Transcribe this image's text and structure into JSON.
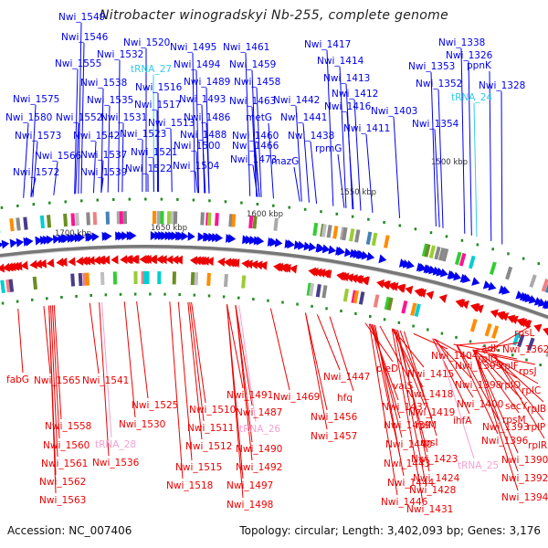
{
  "title": "Nitrobacter winogradskyi Nb-255, complete genome",
  "footer": {
    "accession": "Accession: NC_007406",
    "summary": "Topology: circular; Length: 3,402,093 bp; Genes: 3,176"
  },
  "colors": {
    "forward": "#0000ee",
    "reverse": "#ee0000",
    "trna_forward": "#33ccee",
    "trna_reverse": "#f4a0d0",
    "backbone": "#888888",
    "gc_marker": "#228b22"
  },
  "scale_marks": [
    {
      "label": "1700 kbp"
    },
    {
      "label": "1650 kbp"
    },
    {
      "label": "1600 kbp"
    },
    {
      "label": "1550 kbp"
    },
    {
      "label": "1500 kbp"
    }
  ],
  "forward_labels": [
    {
      "text": "Nwi_1549",
      "kind": "gene"
    },
    {
      "text": "Nwi_1546",
      "kind": "gene"
    },
    {
      "text": "Nwi_1555",
      "kind": "gene"
    },
    {
      "text": "Nwi_1532",
      "kind": "gene"
    },
    {
      "text": "Nwi_1520",
      "kind": "gene"
    },
    {
      "text": "tRNA_27",
      "kind": "trna"
    },
    {
      "text": "Nwi_1538",
      "kind": "gene"
    },
    {
      "text": "Nwi_1516",
      "kind": "gene"
    },
    {
      "text": "Nwi_1575",
      "kind": "gene"
    },
    {
      "text": "Nwi_1535",
      "kind": "gene"
    },
    {
      "text": "Nwi_1517",
      "kind": "gene"
    },
    {
      "text": "Nwi_1580",
      "kind": "gene"
    },
    {
      "text": "Nwi_1552",
      "kind": "gene"
    },
    {
      "text": "Nwi_1531",
      "kind": "gene"
    },
    {
      "text": "Nwi_1513",
      "kind": "gene"
    },
    {
      "text": "Nwi_1573",
      "kind": "gene"
    },
    {
      "text": "Nwi_1542",
      "kind": "gene"
    },
    {
      "text": "Nwi_1523",
      "kind": "gene"
    },
    {
      "text": "Nwi_1566",
      "kind": "gene"
    },
    {
      "text": "Nwi_1537",
      "kind": "gene"
    },
    {
      "text": "Nwi_1521",
      "kind": "gene"
    },
    {
      "text": "Nwi_1572",
      "kind": "gene"
    },
    {
      "text": "Nwi_1539",
      "kind": "gene"
    },
    {
      "text": "Nwi_1522",
      "kind": "gene"
    },
    {
      "text": "Nwi_1495",
      "kind": "gene"
    },
    {
      "text": "Nwi_1494",
      "kind": "gene"
    },
    {
      "text": "Nwi_1489",
      "kind": "gene"
    },
    {
      "text": "Nwi_1493",
      "kind": "gene"
    },
    {
      "text": "Nwi_1486",
      "kind": "gene"
    },
    {
      "text": "Nwi_1488",
      "kind": "gene"
    },
    {
      "text": "Nwi_1500",
      "kind": "gene"
    },
    {
      "text": "Nwi_1504",
      "kind": "gene"
    },
    {
      "text": "Nwi_1461",
      "kind": "gene"
    },
    {
      "text": "Nwi_1459",
      "kind": "gene"
    },
    {
      "text": "Nwi_1458",
      "kind": "gene"
    },
    {
      "text": "Nwi_1463",
      "kind": "gene"
    },
    {
      "text": "metG",
      "kind": "gene"
    },
    {
      "text": "Nwi_1460",
      "kind": "gene"
    },
    {
      "text": "Nwi_1466",
      "kind": "gene"
    },
    {
      "text": "Nwi_1473",
      "kind": "gene"
    },
    {
      "text": "mazG",
      "kind": "gene"
    },
    {
      "text": "Nwi_1442",
      "kind": "gene"
    },
    {
      "text": "Nwi_1441",
      "kind": "gene"
    },
    {
      "text": "Nwi_1438",
      "kind": "gene"
    },
    {
      "text": "rpmG",
      "kind": "gene"
    },
    {
      "text": "Nwi_1417",
      "kind": "gene"
    },
    {
      "text": "Nwi_1414",
      "kind": "gene"
    },
    {
      "text": "Nwi_1413",
      "kind": "gene"
    },
    {
      "text": "Nwi_1412",
      "kind": "gene"
    },
    {
      "text": "Nwi_1416",
      "kind": "gene"
    },
    {
      "text": "Nwi_1411",
      "kind": "gene"
    },
    {
      "text": "Nwi_1403",
      "kind": "gene"
    },
    {
      "text": "Nwi_1338",
      "kind": "gene"
    },
    {
      "text": "Nwi_1326",
      "kind": "gene"
    },
    {
      "text": "ppnK",
      "kind": "gene"
    },
    {
      "text": "Nwi_1353",
      "kind": "gene"
    },
    {
      "text": "Nwi_1352",
      "kind": "gene"
    },
    {
      "text": "Nwi_1328",
      "kind": "gene"
    },
    {
      "text": "tRNA_24",
      "kind": "trna"
    },
    {
      "text": "Nwi_1354",
      "kind": "gene"
    }
  ],
  "reverse_labels": [
    {
      "text": "fabG",
      "kind": "gene"
    },
    {
      "text": "Nwi_1565",
      "kind": "gene"
    },
    {
      "text": "Nwi_1558",
      "kind": "gene"
    },
    {
      "text": "Nwi_1560",
      "kind": "gene"
    },
    {
      "text": "Nwi_1561",
      "kind": "gene"
    },
    {
      "text": "Nwi_1562",
      "kind": "gene"
    },
    {
      "text": "Nwi_1563",
      "kind": "gene"
    },
    {
      "text": "Nwi_1541",
      "kind": "gene"
    },
    {
      "text": "tRNA_28",
      "kind": "trna"
    },
    {
      "text": "Nwi_1536",
      "kind": "gene"
    },
    {
      "text": "Nwi_1525",
      "kind": "gene"
    },
    {
      "text": "Nwi_1530",
      "kind": "gene"
    },
    {
      "text": "Nwi_1510",
      "kind": "gene"
    },
    {
      "text": "Nwi_1511",
      "kind": "gene"
    },
    {
      "text": "Nwi_1512",
      "kind": "gene"
    },
    {
      "text": "Nwi_1515",
      "kind": "gene"
    },
    {
      "text": "Nwi_1518",
      "kind": "gene"
    },
    {
      "text": "Nwi_1491",
      "kind": "gene"
    },
    {
      "text": "Nwi_1487",
      "kind": "gene"
    },
    {
      "text": "tRNA_26",
      "kind": "trna"
    },
    {
      "text": "Nwi_1490",
      "kind": "gene"
    },
    {
      "text": "Nwi_1492",
      "kind": "gene"
    },
    {
      "text": "Nwi_1497",
      "kind": "gene"
    },
    {
      "text": "Nwi_1498",
      "kind": "gene"
    },
    {
      "text": "Nwi_1469",
      "kind": "gene"
    },
    {
      "text": "Nwi_1456",
      "kind": "gene"
    },
    {
      "text": "Nwi_1457",
      "kind": "gene"
    },
    {
      "text": "Nwi_1447",
      "kind": "gene"
    },
    {
      "text": "hfq",
      "kind": "gene"
    },
    {
      "text": "pleD",
      "kind": "gene"
    },
    {
      "text": "valS",
      "kind": "gene"
    },
    {
      "text": "Nwi_1437",
      "kind": "gene"
    },
    {
      "text": "Nwi_1439",
      "kind": "gene"
    },
    {
      "text": "Nwi_1440",
      "kind": "gene"
    },
    {
      "text": "Nwi_1443",
      "kind": "gene"
    },
    {
      "text": "Nwi_1444",
      "kind": "gene"
    },
    {
      "text": "Nwi_1446",
      "kind": "gene"
    },
    {
      "text": "Nwi_1415",
      "kind": "gene"
    },
    {
      "text": "Nwi_1418",
      "kind": "gene"
    },
    {
      "text": "Nwi_1419",
      "kind": "gene"
    },
    {
      "text": "rplM",
      "kind": "gene"
    },
    {
      "text": "rpsI",
      "kind": "gene"
    },
    {
      "text": "Nwi_1423",
      "kind": "gene"
    },
    {
      "text": "Nwi_1424",
      "kind": "gene"
    },
    {
      "text": "Nwi_1428",
      "kind": "gene"
    },
    {
      "text": "Nwi_1431",
      "kind": "gene"
    },
    {
      "text": "Nwi_1404",
      "kind": "gene"
    },
    {
      "text": "ihfA",
      "kind": "gene"
    },
    {
      "text": "tRNA_25",
      "kind": "trna"
    },
    {
      "text": "adk",
      "kind": "gene"
    },
    {
      "text": "rplQ",
      "kind": "gene"
    },
    {
      "text": "Nwi_1395",
      "kind": "gene"
    },
    {
      "text": "rplF",
      "kind": "gene"
    },
    {
      "text": "Nwi_1398",
      "kind": "gene"
    },
    {
      "text": "rplO",
      "kind": "gene"
    },
    {
      "text": "Nwi_1400",
      "kind": "gene"
    },
    {
      "text": "secY",
      "kind": "gene"
    },
    {
      "text": "rpsM",
      "kind": "gene"
    },
    {
      "text": "Nwi_1393",
      "kind": "gene"
    },
    {
      "text": "Nwi_1396",
      "kind": "gene"
    },
    {
      "text": "rpsL",
      "kind": "gene"
    },
    {
      "text": "Nwi_1362",
      "kind": "gene"
    },
    {
      "text": "rpsJ",
      "kind": "gene"
    },
    {
      "text": "rplC",
      "kind": "gene"
    },
    {
      "text": "rplB",
      "kind": "gene"
    },
    {
      "text": "rplP",
      "kind": "gene"
    },
    {
      "text": "rplR",
      "kind": "gene"
    },
    {
      "text": "Nwi_1390",
      "kind": "gene"
    },
    {
      "text": "Nwi_1392",
      "kind": "gene"
    },
    {
      "text": "Nwi_1394",
      "kind": "gene"
    }
  ]
}
